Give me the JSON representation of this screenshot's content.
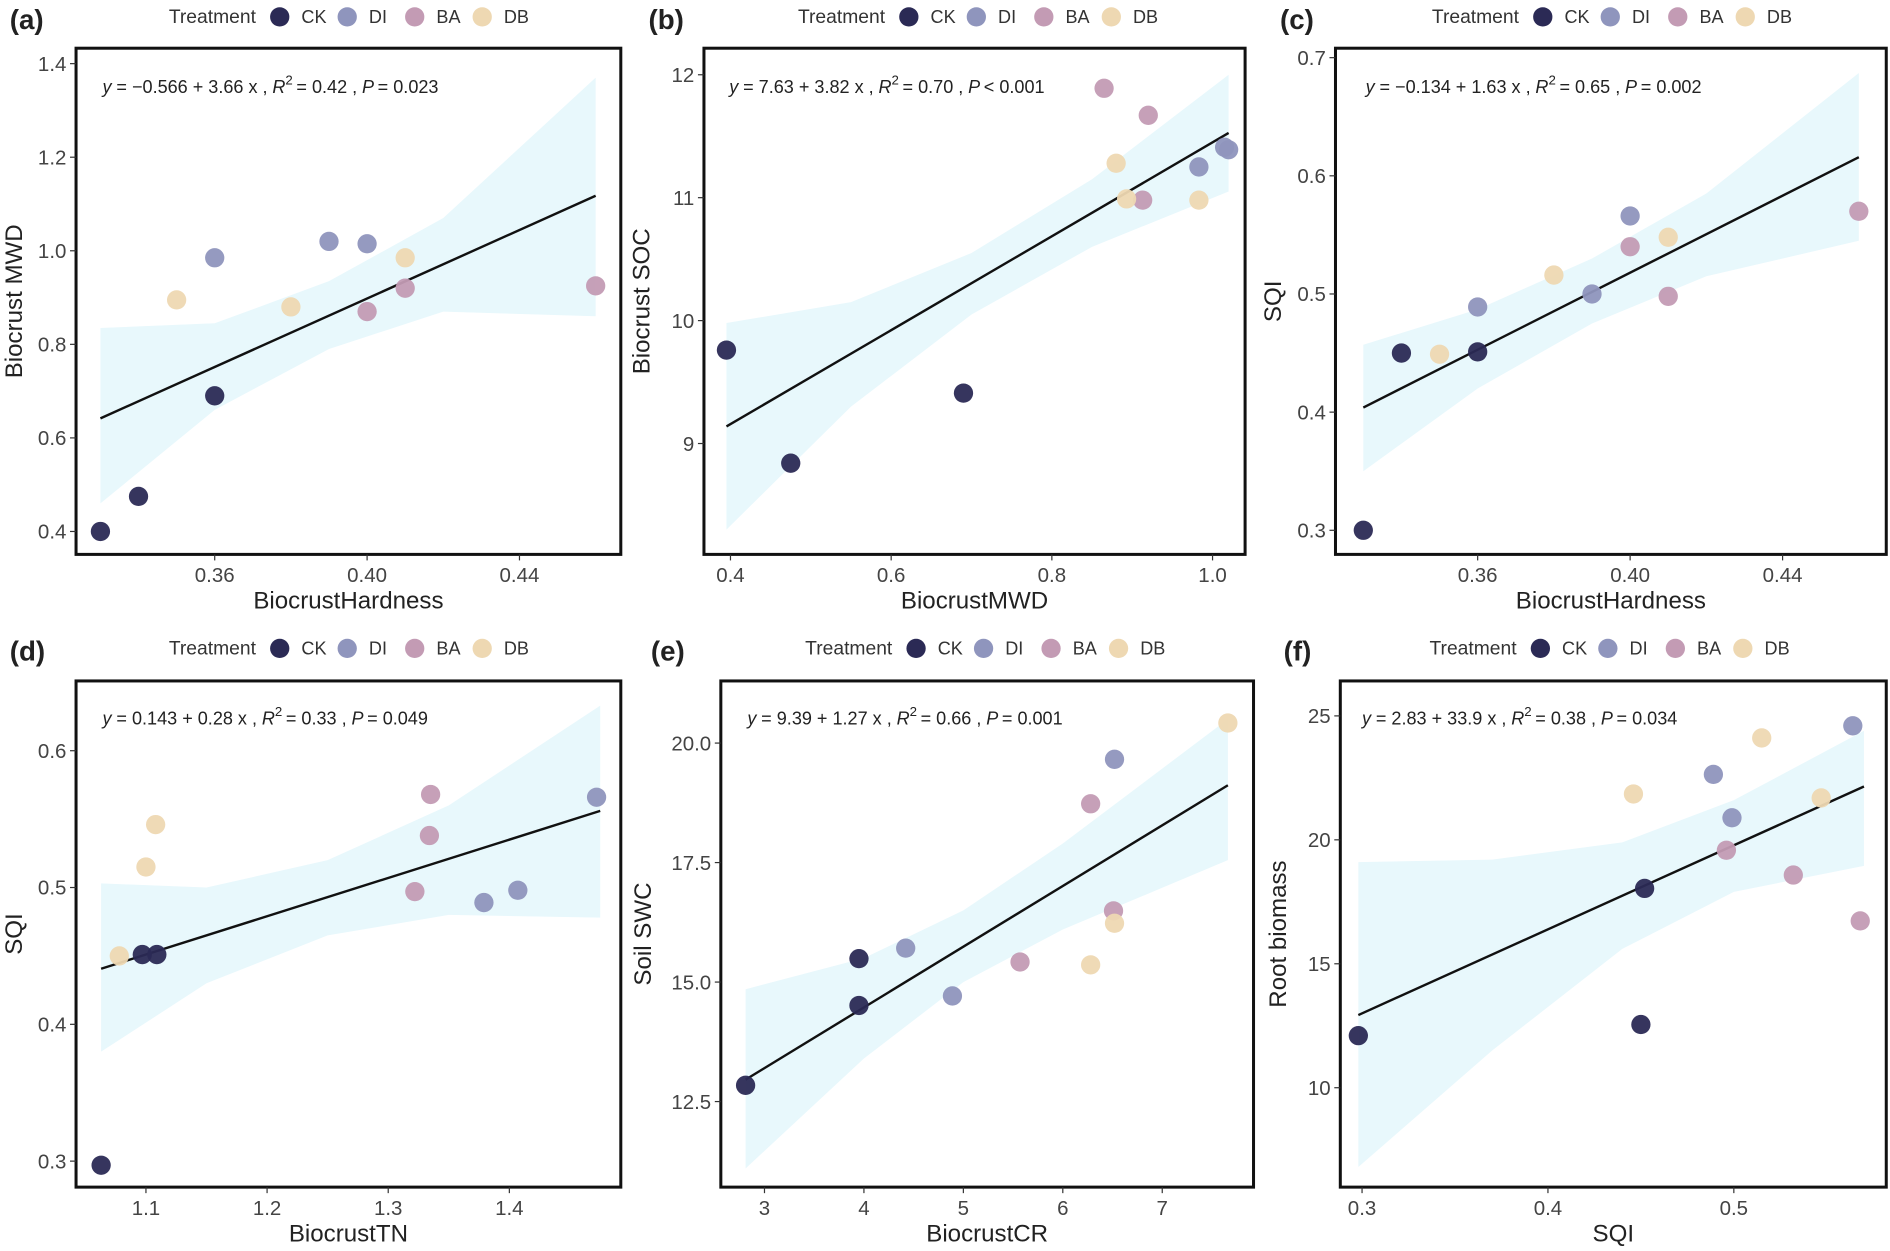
{
  "legend": {
    "title": "Treatment",
    "groups": [
      {
        "label": "CK",
        "color": "#2b2a55"
      },
      {
        "label": "DI",
        "color": "#8f95bd"
      },
      {
        "label": "BA",
        "color": "#c39bb4"
      },
      {
        "label": "DB",
        "color": "#eed8b2"
      }
    ]
  },
  "band_color": "#e8f8fc",
  "chart_data": [
    {
      "type": "scatter",
      "panel": "(a)",
      "xlabel": "BiocrustHardness",
      "ylabel": "Biocrust MWD",
      "xticks": [
        "0.36",
        "0.40",
        "0.44"
      ],
      "yticks": [
        "0.4",
        "0.6",
        "0.8",
        "1.0",
        "1.2",
        "1.4"
      ],
      "xlim": [
        0.3236,
        0.4666
      ],
      "ylim": [
        0.351,
        1.433
      ],
      "equation": {
        "lhs": "y",
        "rhs": "= −0.566 + 3.66 x ,",
        "r": "R",
        "sup": "2",
        "r_val": "= 0.42 ,",
        "p": "P",
        "p_val": "= 0.023"
      },
      "fit": {
        "intercept": -0.566,
        "slope": 3.66,
        "x_range": [
          0.33,
          0.46
        ]
      },
      "ci": [
        [
          0.33,
          0.46,
          0.835
        ],
        [
          0.36,
          0.66,
          0.845
        ],
        [
          0.39,
          0.79,
          0.935
        ],
        [
          0.42,
          0.87,
          1.07
        ],
        [
          0.46,
          0.86,
          1.37
        ]
      ],
      "points": {
        "CK": [
          [
            0.33,
            0.4
          ],
          [
            0.34,
            0.475
          ],
          [
            0.36,
            0.69
          ]
        ],
        "DI": [
          [
            0.36,
            0.985
          ],
          [
            0.39,
            1.02
          ],
          [
            0.4,
            1.015
          ]
        ],
        "BA": [
          [
            0.4,
            0.87
          ],
          [
            0.41,
            0.92
          ],
          [
            0.46,
            0.925
          ]
        ],
        "DB": [
          [
            0.35,
            0.895
          ],
          [
            0.38,
            0.88
          ],
          [
            0.41,
            0.985
          ]
        ]
      }
    },
    {
      "type": "scatter",
      "panel": "(b)",
      "xlabel": "BiocrustMWD",
      "ylabel": "Biocrust SOC",
      "xticks": [
        "0.4",
        "0.6",
        "0.8",
        "1.0"
      ],
      "yticks": [
        "9",
        "10",
        "11",
        "12"
      ],
      "xlim": [
        0.367,
        1.0405
      ],
      "ylim": [
        8.098,
        12.216
      ],
      "equation": {
        "lhs": "y",
        "rhs": "= 7.63 + 3.82 x ,",
        "r": "R",
        "sup": "2",
        "r_val": "= 0.70 ,",
        "p": "P",
        "p_val": "< 0.001"
      },
      "fit": {
        "intercept": 7.63,
        "slope": 3.82,
        "x_range": [
          0.395,
          1.02
        ]
      },
      "ci": [
        [
          0.395,
          8.3,
          9.98
        ],
        [
          0.55,
          9.3,
          10.15
        ],
        [
          0.7,
          10.05,
          10.55
        ],
        [
          0.85,
          10.6,
          11.15
        ],
        [
          1.02,
          11.05,
          12.0
        ]
      ],
      "points": {
        "CK": [
          [
            0.395,
            9.76
          ],
          [
            0.475,
            8.84
          ],
          [
            0.69,
            9.41
          ]
        ],
        "DI": [
          [
            0.983,
            11.25
          ],
          [
            1.015,
            11.41
          ],
          [
            1.02,
            11.39
          ]
        ],
        "BA": [
          [
            0.865,
            11.89
          ],
          [
            0.92,
            11.67
          ],
          [
            0.913,
            10.98
          ]
        ],
        "DB": [
          [
            0.88,
            11.28
          ],
          [
            0.893,
            10.99
          ],
          [
            0.983,
            10.98
          ]
        ]
      }
    },
    {
      "type": "scatter",
      "panel": "(c)",
      "xlabel": "BiocrustHardness",
      "ylabel": "SQI",
      "xticks": [
        "0.36",
        "0.40",
        "0.44"
      ],
      "yticks": [
        "0.3",
        "0.4",
        "0.5",
        "0.6",
        "0.7"
      ],
      "xlim": [
        0.3227,
        0.4672
      ],
      "ylim": [
        0.2796,
        0.708
      ],
      "equation": {
        "lhs": "y",
        "rhs": "= −0.134 + 1.63 x ,",
        "r": "R",
        "sup": "2",
        "r_val": "= 0.65 ,",
        "p": "P",
        "p_val": "= 0.002"
      },
      "fit": {
        "intercept": -0.134,
        "slope": 1.63,
        "x_range": [
          0.33,
          0.46
        ]
      },
      "ci": [
        [
          0.33,
          0.35,
          0.457
        ],
        [
          0.36,
          0.42,
          0.487
        ],
        [
          0.39,
          0.475,
          0.53
        ],
        [
          0.42,
          0.515,
          0.585
        ],
        [
          0.46,
          0.545,
          0.687
        ]
      ],
      "points": {
        "CK": [
          [
            0.33,
            0.3
          ],
          [
            0.34,
            0.45
          ],
          [
            0.36,
            0.451
          ]
        ],
        "DI": [
          [
            0.36,
            0.489
          ],
          [
            0.39,
            0.5
          ],
          [
            0.4,
            0.566
          ]
        ],
        "BA": [
          [
            0.4,
            0.54
          ],
          [
            0.41,
            0.498
          ],
          [
            0.46,
            0.57
          ]
        ],
        "DB": [
          [
            0.35,
            0.449
          ],
          [
            0.38,
            0.516
          ],
          [
            0.41,
            0.548
          ]
        ]
      }
    },
    {
      "type": "scatter",
      "panel": "(d)",
      "xlabel": "BiocrustTN",
      "ylabel": "SQI",
      "xticks": [
        "1.1",
        "1.2",
        "1.3",
        "1.4"
      ],
      "yticks": [
        "0.3",
        "0.4",
        "0.5",
        "0.6"
      ],
      "xlim": [
        1.0423,
        1.492
      ],
      "ylim": [
        0.281,
        0.651
      ],
      "equation": {
        "lhs": "y",
        "rhs": "= 0.143 + 0.28 x ,",
        "r": "R",
        "sup": "2",
        "r_val": "= 0.33 ,",
        "p": "P",
        "p_val": "= 0.049"
      },
      "fit": {
        "intercept": 0.143,
        "slope": 0.28,
        "x_range": [
          1.063,
          1.475
        ]
      },
      "ci": [
        [
          1.063,
          0.38,
          0.503
        ],
        [
          1.15,
          0.43,
          0.5
        ],
        [
          1.25,
          0.465,
          0.52
        ],
        [
          1.35,
          0.48,
          0.56
        ],
        [
          1.475,
          0.478,
          0.633
        ]
      ],
      "points": {
        "CK": [
          [
            1.063,
            0.297
          ],
          [
            1.097,
            0.451
          ],
          [
            1.109,
            0.451
          ]
        ],
        "DI": [
          [
            1.379,
            0.489
          ],
          [
            1.407,
            0.498
          ],
          [
            1.472,
            0.566
          ]
        ],
        "BA": [
          [
            1.335,
            0.568
          ],
          [
            1.334,
            0.538
          ],
          [
            1.322,
            0.497
          ]
        ],
        "DB": [
          [
            1.078,
            0.45
          ],
          [
            1.1,
            0.515
          ],
          [
            1.108,
            0.546
          ]
        ]
      }
    },
    {
      "type": "scatter",
      "panel": "(e)",
      "xlabel": "BiocrustCR",
      "ylabel": "Soil SWC",
      "xticks": [
        "3",
        "4",
        "5",
        "6",
        "7"
      ],
      "yticks": [
        "12.5",
        "15.0",
        "17.5",
        "20.0"
      ],
      "xlim": [
        2.561,
        7.918
      ],
      "ylim": [
        10.71,
        21.3
      ],
      "equation": {
        "lhs": "y",
        "rhs": "= 9.39 + 1.27 x ,",
        "r": "R",
        "sup": "2",
        "r_val": "= 0.66 ,",
        "p": "P",
        "p_val": "= 0.001"
      },
      "fit": {
        "intercept": 9.39,
        "slope": 1.27,
        "x_range": [
          2.81,
          7.66
        ]
      },
      "ci": [
        [
          2.81,
          11.1,
          14.85
        ],
        [
          4,
          13.4,
          15.5
        ],
        [
          5,
          15.0,
          16.5
        ],
        [
          6,
          16.1,
          17.9
        ],
        [
          7.66,
          17.55,
          20.5
        ]
      ],
      "points": {
        "CK": [
          [
            2.81,
            12.84
          ],
          [
            3.95,
            15.49
          ],
          [
            3.95,
            14.51
          ]
        ],
        "DI": [
          [
            4.42,
            15.71
          ],
          [
            4.89,
            14.71
          ],
          [
            6.52,
            19.66
          ]
        ],
        "BA": [
          [
            6.28,
            18.73
          ],
          [
            6.51,
            16.49
          ],
          [
            5.57,
            15.42
          ]
        ],
        "DB": [
          [
            7.66,
            20.42
          ],
          [
            6.52,
            16.23
          ],
          [
            6.28,
            15.36
          ]
        ]
      }
    },
    {
      "type": "scatter",
      "panel": "(f)",
      "xlabel": "SQI",
      "ylabel": "Root biomass",
      "xticks": [
        "0.3",
        "0.4",
        "0.5"
      ],
      "yticks": [
        "10",
        "15",
        "20",
        "25"
      ],
      "xlim": [
        0.2883,
        0.582
      ],
      "ylim": [
        5.99,
        26.41
      ],
      "equation": {
        "lhs": "y",
        "rhs": "= 2.83 + 33.9 x ,",
        "r": "R",
        "sup": "2",
        "r_val": "= 0.38 ,",
        "p": "P",
        "p_val": "= 0.034"
      },
      "fit": {
        "intercept": 2.83,
        "slope": 33.9,
        "x_range": [
          0.298,
          0.57
        ]
      },
      "ci": [
        [
          0.298,
          6.8,
          19.1
        ],
        [
          0.37,
          11.5,
          19.2
        ],
        [
          0.44,
          15.6,
          19.9
        ],
        [
          0.5,
          17.9,
          21.6
        ],
        [
          0.57,
          18.95,
          24.4
        ]
      ],
      "points": {
        "CK": [
          [
            0.298,
            12.1
          ],
          [
            0.45,
            12.55
          ],
          [
            0.452,
            18.04
          ]
        ],
        "DI": [
          [
            0.564,
            24.6
          ],
          [
            0.489,
            22.64
          ],
          [
            0.499,
            20.89
          ]
        ],
        "BA": [
          [
            0.496,
            19.58
          ],
          [
            0.532,
            18.58
          ],
          [
            0.568,
            16.73
          ]
        ],
        "DB": [
          [
            0.446,
            21.85
          ],
          [
            0.515,
            24.11
          ],
          [
            0.547,
            21.69
          ]
        ]
      }
    }
  ]
}
